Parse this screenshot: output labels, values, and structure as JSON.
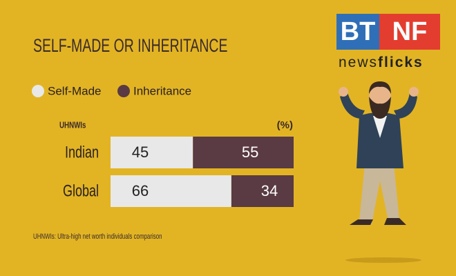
{
  "chart_data": {
    "type": "stacked-bar-horizontal",
    "title": "SELF-MADE OR INHERITANCE",
    "categories": [
      "Indian",
      "Global"
    ],
    "series": [
      {
        "name": "Self-Made",
        "color": "#e8e8e8",
        "values": [
          45,
          66
        ]
      },
      {
        "name": "Inheritance",
        "color": "#5a3a43",
        "values": [
          55,
          34
        ]
      }
    ],
    "xlim": [
      0,
      100
    ],
    "y_axis_label": "UHNWIs",
    "unit_label": "(%)",
    "footnote": "UHNWIs: Ultra-high net worth individuals comparison"
  },
  "logo": {
    "left": "BT",
    "right": "NF",
    "tagline_a": "news",
    "tagline_b": "flicks"
  }
}
